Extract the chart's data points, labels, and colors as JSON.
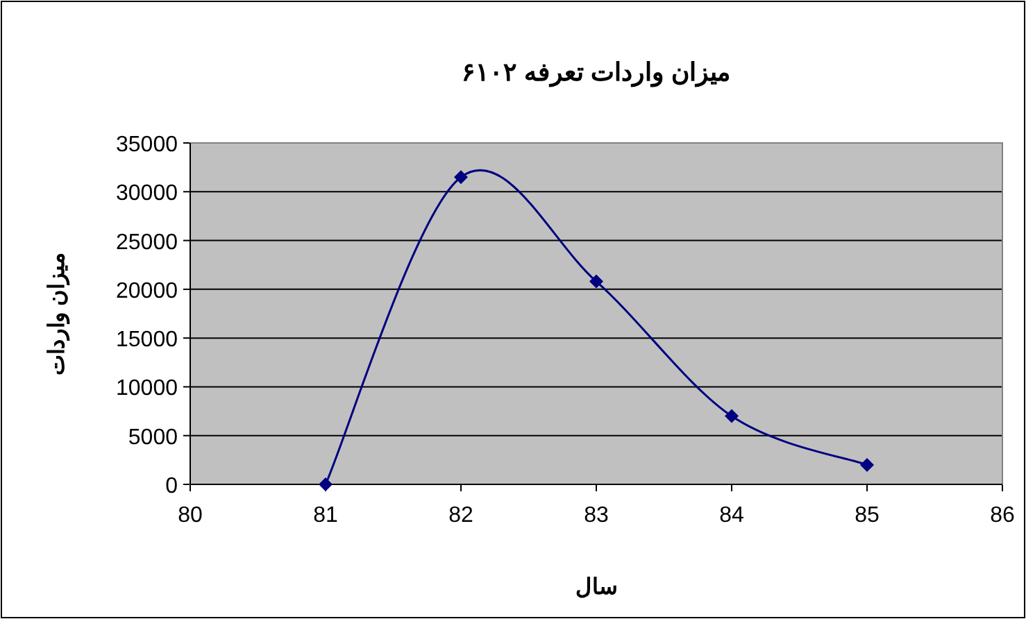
{
  "chart_data": {
    "type": "line",
    "title": "میزان واردات تعرفه ۶۱۰۲",
    "xlabel": "سال",
    "ylabel": "میزان واردات",
    "x": [
      81,
      82,
      83,
      84,
      85
    ],
    "series": [
      {
        "color": "#000080",
        "values": [
          0,
          31500,
          20800,
          7000,
          2000
        ]
      }
    ],
    "xlim": [
      80,
      86
    ],
    "xticks": [
      80,
      81,
      82,
      83,
      84,
      85,
      86
    ],
    "ylim": [
      0,
      35000
    ],
    "yticks": [
      0,
      5000,
      10000,
      15000,
      20000,
      25000,
      30000,
      35000
    ],
    "grid": "y",
    "marker": "diamond",
    "line_style": "solid"
  }
}
